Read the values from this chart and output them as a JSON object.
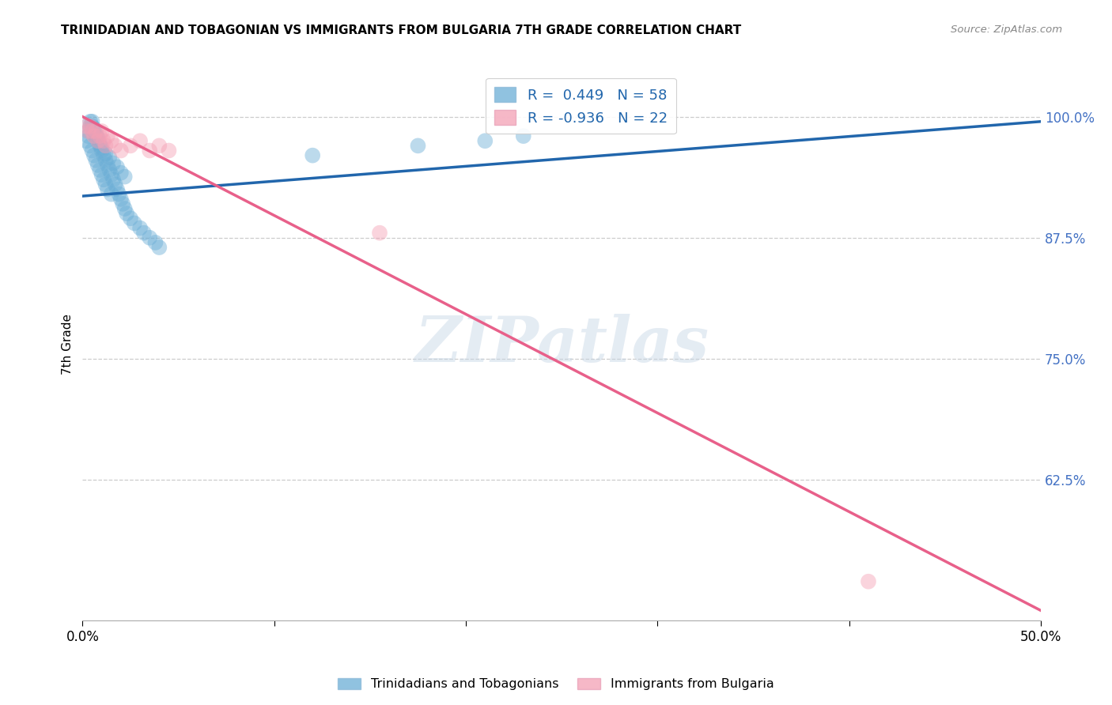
{
  "title": "TRINIDADIAN AND TOBAGONIAN VS IMMIGRANTS FROM BULGARIA 7TH GRADE CORRELATION CHART",
  "source": "Source: ZipAtlas.com",
  "ylabel": "7th Grade",
  "ytick_labels": [
    "100.0%",
    "87.5%",
    "75.0%",
    "62.5%"
  ],
  "ytick_values": [
    1.0,
    0.875,
    0.75,
    0.625
  ],
  "xlim": [
    0.0,
    0.5
  ],
  "ylim": [
    0.48,
    1.05
  ],
  "blue_R": 0.449,
  "blue_N": 58,
  "pink_R": -0.936,
  "pink_N": 22,
  "blue_label": "Trinidadians and Tobagonians",
  "pink_label": "Immigrants from Bulgaria",
  "blue_color": "#6baed6",
  "pink_color": "#f4a0b5",
  "blue_line_color": "#2166ac",
  "pink_line_color": "#e8608a",
  "watermark_zip": "ZIP",
  "watermark_atlas": "atlas",
  "blue_scatter_x": [
    0.002,
    0.003,
    0.004,
    0.004,
    0.005,
    0.005,
    0.006,
    0.006,
    0.007,
    0.007,
    0.008,
    0.008,
    0.009,
    0.009,
    0.01,
    0.01,
    0.011,
    0.011,
    0.012,
    0.012,
    0.013,
    0.013,
    0.014,
    0.015,
    0.015,
    0.016,
    0.017,
    0.018,
    0.019,
    0.02,
    0.021,
    0.022,
    0.023,
    0.025,
    0.027,
    0.03,
    0.032,
    0.035,
    0.038,
    0.04,
    0.003,
    0.004,
    0.005,
    0.006,
    0.007,
    0.008,
    0.009,
    0.01,
    0.012,
    0.014,
    0.016,
    0.018,
    0.02,
    0.022,
    0.12,
    0.175,
    0.21,
    0.23
  ],
  "blue_scatter_y": [
    0.975,
    0.98,
    0.995,
    0.97,
    0.99,
    0.965,
    0.985,
    0.96,
    0.98,
    0.955,
    0.975,
    0.95,
    0.97,
    0.945,
    0.965,
    0.94,
    0.96,
    0.935,
    0.955,
    0.93,
    0.95,
    0.925,
    0.945,
    0.94,
    0.92,
    0.935,
    0.93,
    0.925,
    0.92,
    0.915,
    0.91,
    0.905,
    0.9,
    0.895,
    0.89,
    0.885,
    0.88,
    0.875,
    0.87,
    0.865,
    0.985,
    0.99,
    0.995,
    0.988,
    0.982,
    0.978,
    0.972,
    0.968,
    0.962,
    0.958,
    0.952,
    0.948,
    0.942,
    0.938,
    0.96,
    0.97,
    0.975,
    0.98
  ],
  "pink_scatter_x": [
    0.002,
    0.003,
    0.004,
    0.005,
    0.006,
    0.007,
    0.008,
    0.009,
    0.01,
    0.011,
    0.012,
    0.013,
    0.015,
    0.017,
    0.02,
    0.025,
    0.03,
    0.035,
    0.04,
    0.045,
    0.155,
    0.41
  ],
  "pink_scatter_y": [
    0.99,
    0.985,
    0.99,
    0.985,
    0.98,
    0.985,
    0.975,
    0.98,
    0.985,
    0.975,
    0.97,
    0.98,
    0.975,
    0.97,
    0.965,
    0.97,
    0.975,
    0.965,
    0.97,
    0.965,
    0.88,
    0.52
  ],
  "blue_line_x0": 0.0,
  "blue_line_y0": 0.918,
  "blue_line_x1": 0.5,
  "blue_line_y1": 0.995,
  "pink_line_x0": 0.0,
  "pink_line_y0": 1.0,
  "pink_line_x1": 0.5,
  "pink_line_y1": 0.49
}
